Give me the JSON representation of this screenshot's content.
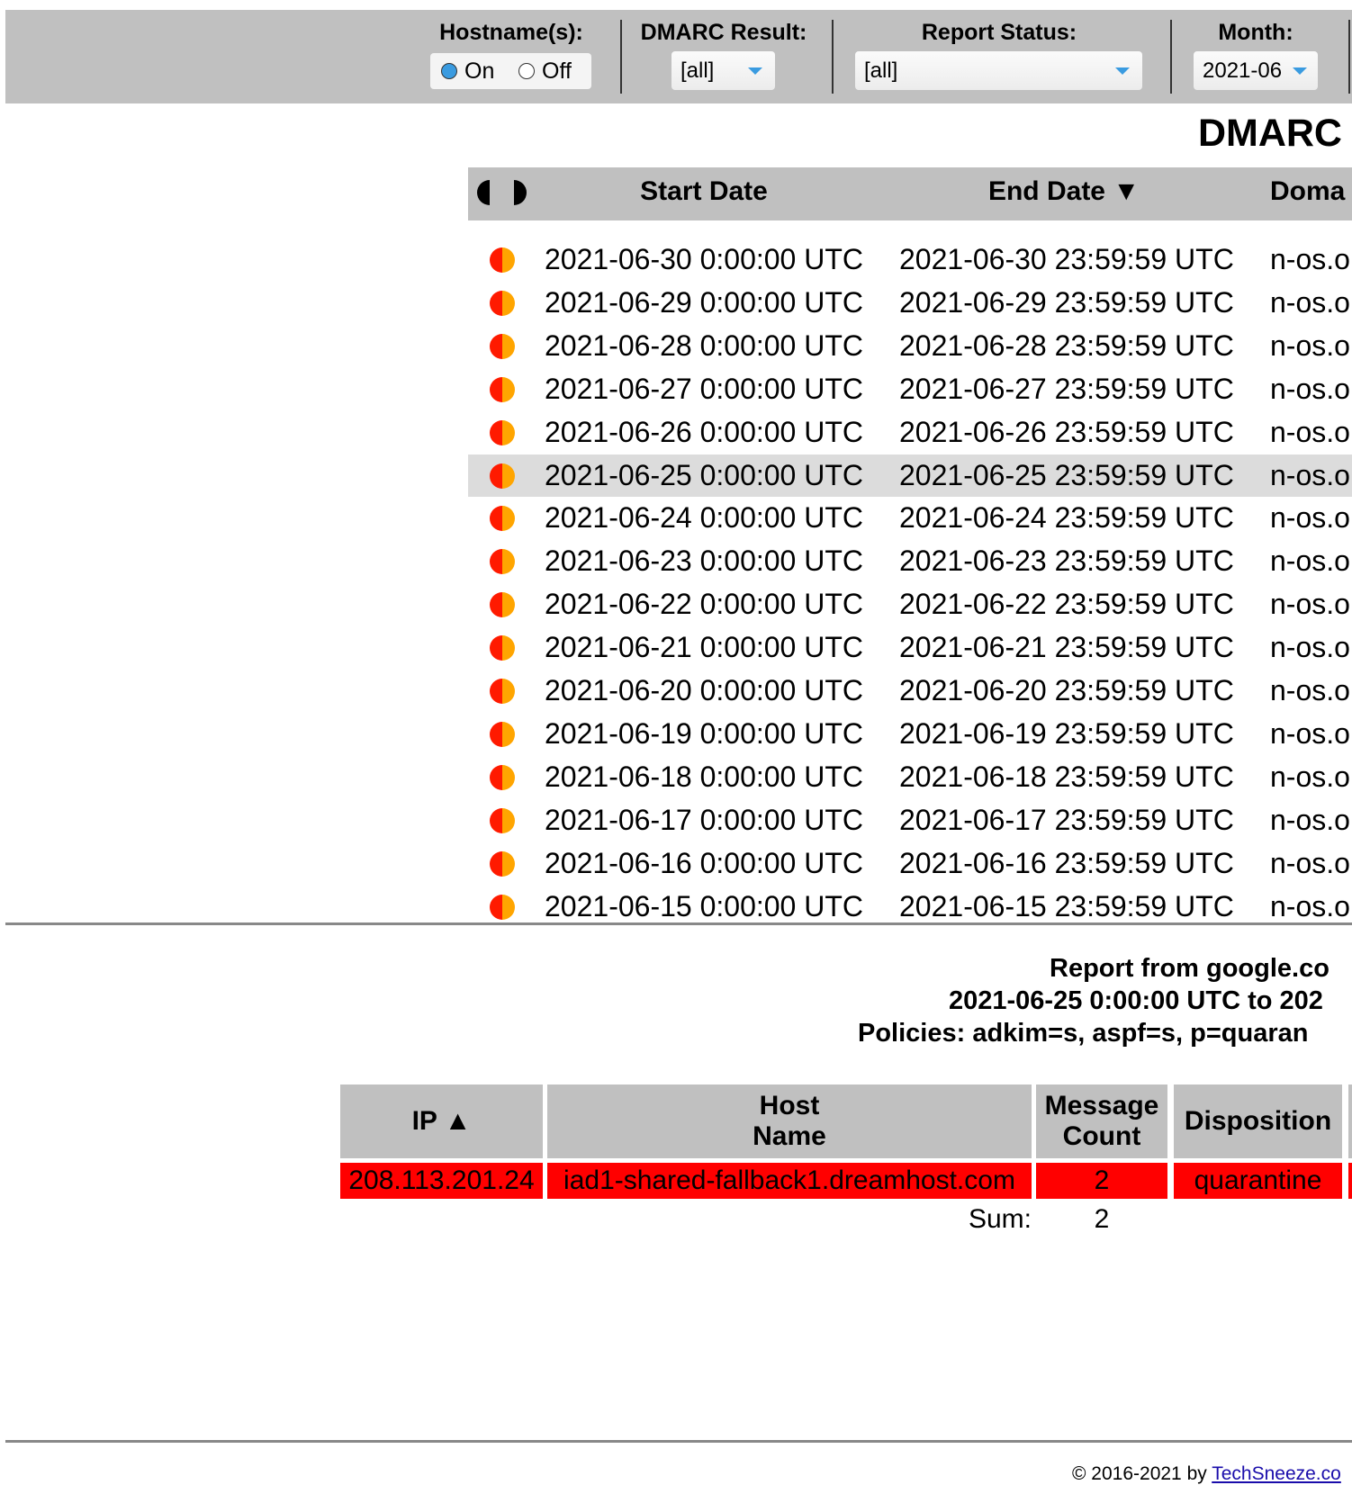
{
  "filters": {
    "hostname": {
      "label": "Hostname(s):",
      "options": [
        "On",
        "Off"
      ],
      "selected": 0
    },
    "dmarc_result": {
      "label": "DMARC Result:",
      "value": "[all]"
    },
    "report_status": {
      "label": "Report Status:",
      "value": "[all]"
    },
    "month": {
      "label": "Month:",
      "value": "2021-06"
    }
  },
  "title": "DMARC",
  "report_list": {
    "headers": [
      "Start Date",
      "End Date ▼",
      "Doma"
    ],
    "selected_row": 5,
    "rows": [
      [
        "2021-06-30 0:00:00 UTC",
        "2021-06-30 23:59:59 UTC",
        "n-os.o"
      ],
      [
        "2021-06-29 0:00:00 UTC",
        "2021-06-29 23:59:59 UTC",
        "n-os.o"
      ],
      [
        "2021-06-28 0:00:00 UTC",
        "2021-06-28 23:59:59 UTC",
        "n-os.o"
      ],
      [
        "2021-06-27 0:00:00 UTC",
        "2021-06-27 23:59:59 UTC",
        "n-os.o"
      ],
      [
        "2021-06-26 0:00:00 UTC",
        "2021-06-26 23:59:59 UTC",
        "n-os.o"
      ],
      [
        "2021-06-25 0:00:00 UTC",
        "2021-06-25 23:59:59 UTC",
        "n-os.o"
      ],
      [
        "2021-06-24 0:00:00 UTC",
        "2021-06-24 23:59:59 UTC",
        "n-os.o"
      ],
      [
        "2021-06-23 0:00:00 UTC",
        "2021-06-23 23:59:59 UTC",
        "n-os.o"
      ],
      [
        "2021-06-22 0:00:00 UTC",
        "2021-06-22 23:59:59 UTC",
        "n-os.o"
      ],
      [
        "2021-06-21 0:00:00 UTC",
        "2021-06-21 23:59:59 UTC",
        "n-os.o"
      ],
      [
        "2021-06-20 0:00:00 UTC",
        "2021-06-20 23:59:59 UTC",
        "n-os.o"
      ],
      [
        "2021-06-19 0:00:00 UTC",
        "2021-06-19 23:59:59 UTC",
        "n-os.o"
      ],
      [
        "2021-06-18 0:00:00 UTC",
        "2021-06-18 23:59:59 UTC",
        "n-os.o"
      ],
      [
        "2021-06-17 0:00:00 UTC",
        "2021-06-17 23:59:59 UTC",
        "n-os.o"
      ],
      [
        "2021-06-16 0:00:00 UTC",
        "2021-06-16 23:59:59 UTC",
        "n-os.o"
      ],
      [
        "2021-06-15 0:00:00 UTC",
        "2021-06-15 23:59:59 UTC",
        "n-os.o"
      ]
    ]
  },
  "report_detail": {
    "lines": [
      "Report from google.co",
      "2021-06-25 0:00:00 UTC to 202",
      "Policies: adkim=s, aspf=s, p=quaran"
    ],
    "table": {
      "headers": [
        "IP ▲",
        "Host\nName",
        "Message\nCount",
        "Disposition"
      ],
      "rows": [
        [
          "208.113.201.24",
          "iad1-shared-fallback1.dreamhost.com",
          "2",
          "quarantine"
        ]
      ],
      "sum_label": "Sum:",
      "sum": "2"
    }
  },
  "footer": {
    "text": "© 2016-2021 by",
    "link": "TechSneeze.co"
  }
}
